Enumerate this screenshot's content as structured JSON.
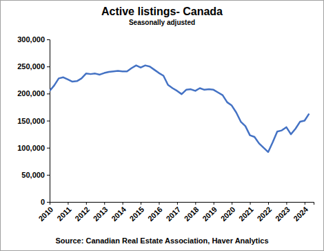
{
  "chart_data": {
    "type": "line",
    "title": "Active listings- Canada",
    "subtitle": "Seasonally adjusted",
    "source": "Source: Canadian Real Estate Association, Haver Analytics",
    "color": "#4472c4",
    "grid": false,
    "x": [
      2010,
      2010.25,
      2010.5,
      2010.75,
      2011,
      2011.25,
      2011.5,
      2011.75,
      2012,
      2012.25,
      2012.5,
      2012.75,
      2013,
      2013.25,
      2013.5,
      2013.75,
      2014,
      2014.25,
      2014.5,
      2014.75,
      2015,
      2015.25,
      2015.5,
      2015.75,
      2016,
      2016.25,
      2016.5,
      2016.75,
      2017,
      2017.25,
      2017.5,
      2017.75,
      2018,
      2018.25,
      2018.5,
      2018.75,
      2019,
      2019.25,
      2019.5,
      2019.75,
      2020,
      2020.25,
      2020.5,
      2020.75,
      2021,
      2021.25,
      2021.5,
      2021.75,
      2022,
      2022.25,
      2022.5,
      2022.75,
      2023,
      2023.25,
      2023.5,
      2023.75,
      2024,
      2024.25
    ],
    "values": [
      205000,
      215000,
      228000,
      230000,
      226000,
      222000,
      223000,
      228000,
      237000,
      236000,
      237000,
      235000,
      238000,
      240000,
      241000,
      242000,
      241000,
      241000,
      247000,
      252000,
      248000,
      252000,
      250000,
      244000,
      238000,
      233000,
      216000,
      210000,
      205000,
      199000,
      207000,
      208000,
      205000,
      210000,
      207000,
      208000,
      207000,
      202000,
      197000,
      184000,
      178000,
      165000,
      148000,
      140000,
      123000,
      120000,
      108000,
      100000,
      92000,
      110000,
      130000,
      132000,
      138000,
      125000,
      135000,
      148000,
      150000,
      163000
    ],
    "xlim": [
      2010,
      2024.5
    ],
    "xticks": [
      2010,
      2011,
      2012,
      2013,
      2014,
      2015,
      2016,
      2017,
      2018,
      2019,
      2020,
      2021,
      2022,
      2023,
      2024
    ],
    "ylim": [
      0,
      300000
    ],
    "yticks": [
      0,
      {
        "value": 50000,
        "label": "50,000"
      },
      {
        "value": 100000,
        "label": "100,000"
      },
      {
        "value": 150000,
        "label": "150,000"
      },
      {
        "value": 200000,
        "label": "200,000"
      },
      {
        "value": 250000,
        "label": "250,000"
      },
      {
        "value": 300000,
        "label": "300,000"
      }
    ]
  }
}
